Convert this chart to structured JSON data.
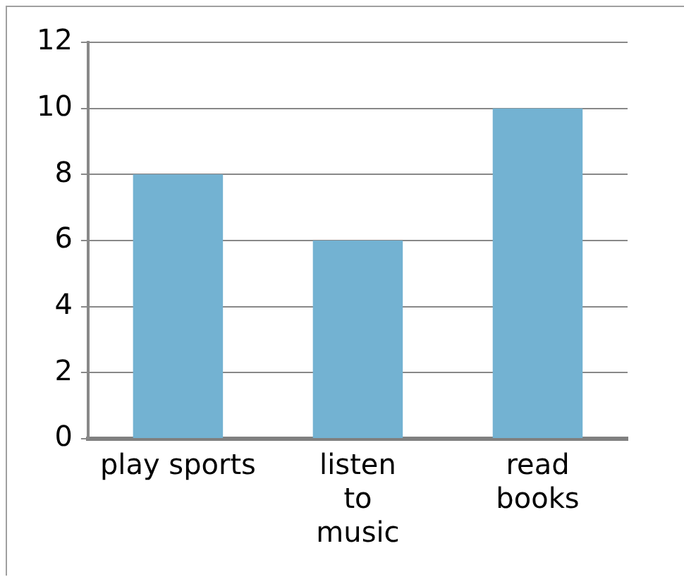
{
  "chart_data": {
    "type": "bar",
    "categories": [
      "play sports",
      "listen\nto\nmusic",
      "read\nbooks"
    ],
    "values": [
      8,
      6,
      10
    ],
    "color": "#73b2d2",
    "ylim": [
      0,
      12
    ],
    "yticks": [
      0,
      2,
      4,
      6,
      8,
      10,
      12
    ],
    "grid": "y",
    "legend": false
  }
}
